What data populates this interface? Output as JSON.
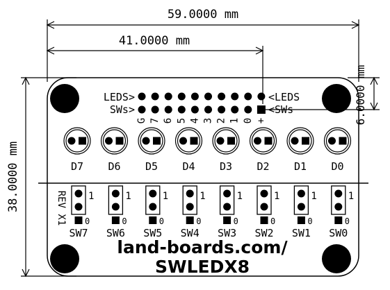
{
  "dimensions": {
    "width_label": "59.0000 mm",
    "pitch_label": "41.0000 mm",
    "height_label": "38.0000 mm",
    "offset_label": "6.0000 mm"
  },
  "header": {
    "row_top_label": "LEDS>",
    "row_top_label_right": "<LEDS",
    "row_bottom_label": "SWs>",
    "row_bottom_label_right": "<SWs",
    "pin_labels": [
      "G",
      "7",
      "6",
      "5",
      "4",
      "3",
      "2",
      "1",
      "0",
      "+"
    ]
  },
  "leds": [
    "D7",
    "D6",
    "D5",
    "D4",
    "D3",
    "D2",
    "D1",
    "D0"
  ],
  "switches": [
    {
      "name": "SW7",
      "pin1": "1",
      "pin0": "0"
    },
    {
      "name": "SW6",
      "pin1": "1",
      "pin0": "0"
    },
    {
      "name": "SW5",
      "pin1": "1",
      "pin0": "0"
    },
    {
      "name": "SW4",
      "pin1": "1",
      "pin0": "0"
    },
    {
      "name": "SW3",
      "pin1": "1",
      "pin0": "0"
    },
    {
      "name": "SW2",
      "pin1": "1",
      "pin0": "0"
    },
    {
      "name": "SW1",
      "pin1": "1",
      "pin0": "0"
    },
    {
      "name": "SW0",
      "pin1": "1",
      "pin0": "0"
    }
  ],
  "revision": "REV X1",
  "branding": {
    "url": "land-boards.com/",
    "product": "SWLEDX8"
  },
  "colors": {
    "ink": "#000000",
    "paper": "#ffffff"
  }
}
